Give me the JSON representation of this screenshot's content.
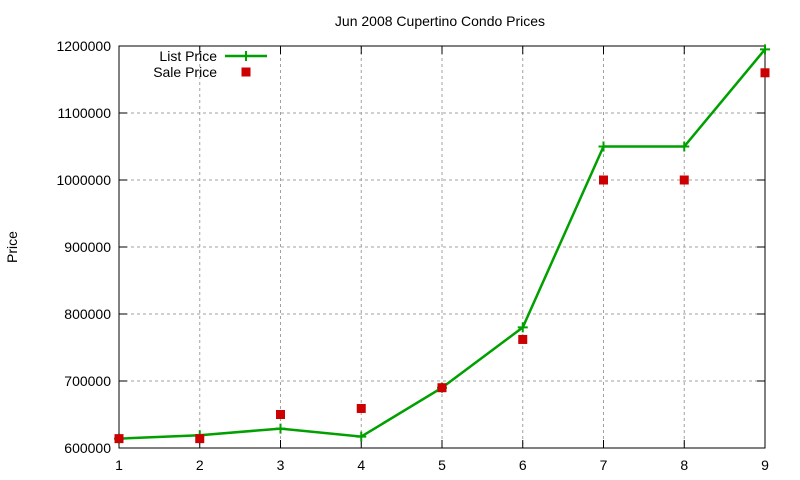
{
  "chart_data": {
    "type": "line",
    "title": "Jun 2008 Cupertino Condo Prices",
    "xlabel": "",
    "ylabel": "Price",
    "x": [
      1,
      2,
      3,
      4,
      5,
      6,
      7,
      8,
      9
    ],
    "xlim": [
      1,
      9
    ],
    "ylim": [
      600000,
      1200000
    ],
    "x_ticks": [
      1,
      2,
      3,
      4,
      5,
      6,
      7,
      8,
      9
    ],
    "y_ticks": [
      600000,
      700000,
      800000,
      900000,
      1000000,
      1100000,
      1200000
    ],
    "grid": true,
    "legend_position": "top-left",
    "series": [
      {
        "name": "List Price",
        "style": "linespoints",
        "marker": "plus",
        "color": "#00a000",
        "values": [
          614000,
          619000,
          629000,
          617000,
          690000,
          780000,
          1050000,
          1050000,
          1195000
        ]
      },
      {
        "name": "Sale Price",
        "style": "points",
        "marker": "square",
        "color": "#cc0000",
        "values": [
          614000,
          614000,
          650000,
          659000,
          690000,
          762000,
          1000000,
          1000000,
          1160000
        ]
      }
    ]
  }
}
